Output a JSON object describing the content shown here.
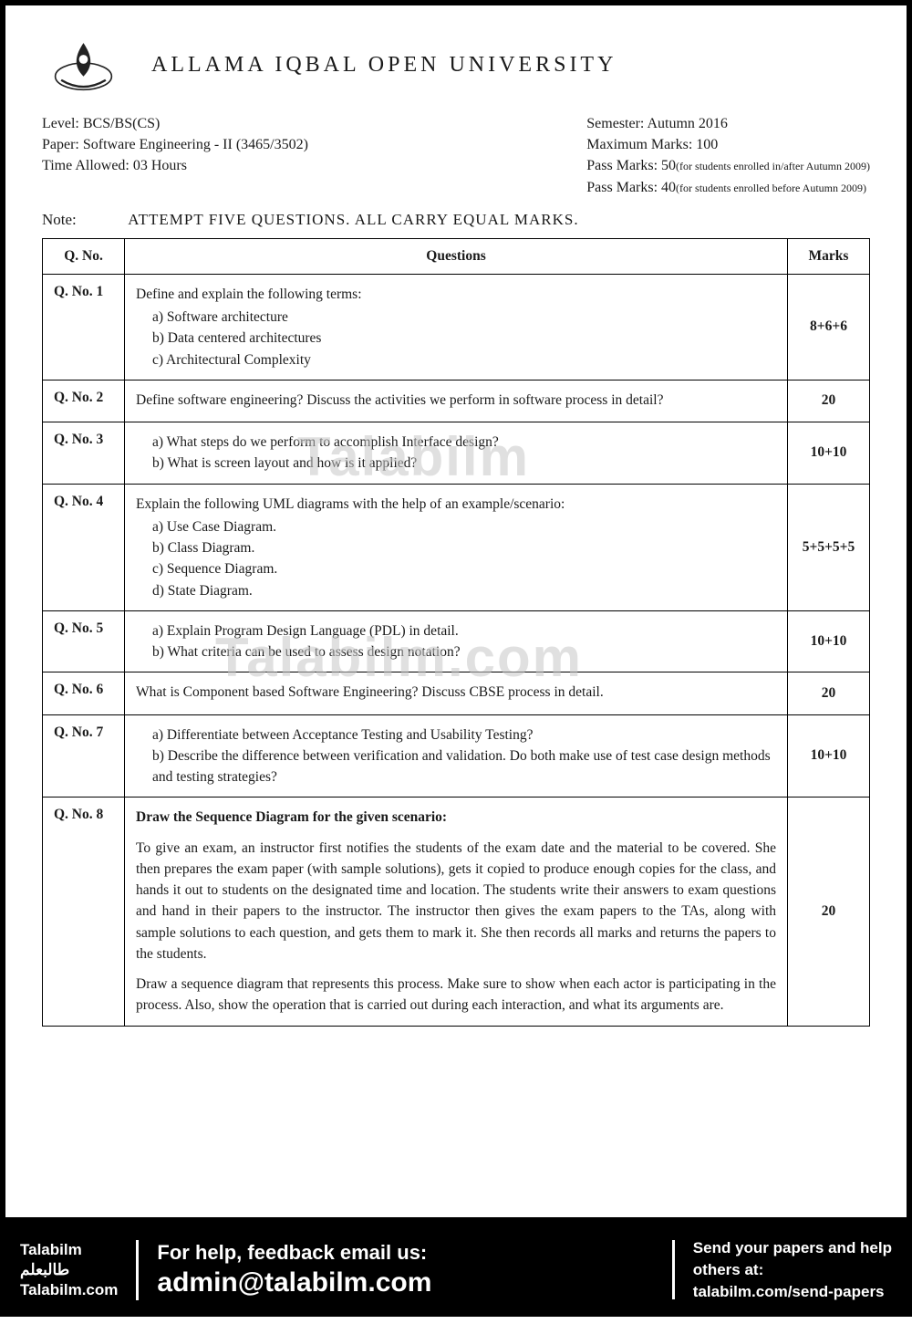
{
  "university": "ALLAMA IQBAL OPEN UNIVERSITY",
  "meta": {
    "level": "Level: BCS/BS(CS)",
    "paper": "Paper: Software Engineering - II  (3465/3502)",
    "time": "Time Allowed: 03 Hours",
    "semester": "Semester: Autumn 2016",
    "maxmarks": "Maximum Marks: 100",
    "pass1": "Pass Marks: 50",
    "pass1_sm": "(for students enrolled in/after Autumn 2009)",
    "pass2": "Pass Marks: 40",
    "pass2_sm": "(for students enrolled before Autumn 2009)"
  },
  "note_label": "Note:",
  "note_text": "ATTEMPT FIVE QUESTIONS. ALL CARRY EQUAL MARKS.",
  "headers": {
    "qno": "Q. No.",
    "questions": "Questions",
    "marks": "Marks"
  },
  "questions": [
    {
      "no": "Q. No. 1",
      "lead": "Define and explain the following terms:",
      "items": [
        "a)  Software architecture",
        "b)  Data centered architectures",
        "c)  Architectural Complexity"
      ],
      "marks": "8+6+6"
    },
    {
      "no": "Q. No. 2",
      "lead": "Define software engineering? Discuss the activities we perform in software process in detail?",
      "items": [],
      "marks": "20"
    },
    {
      "no": "Q. No. 3",
      "lead": "",
      "items": [
        "a)  What steps do we perform to accomplish Interface design?",
        "b)  What is screen layout and how is it applied?"
      ],
      "marks": "10+10"
    },
    {
      "no": "Q. No. 4",
      "lead": "Explain the following UML diagrams with the help of an example/scenario:",
      "items": [
        "a)  Use Case Diagram.",
        "b)  Class Diagram.",
        "c)  Sequence Diagram.",
        "d)  State Diagram."
      ],
      "marks": "5+5+5+5"
    },
    {
      "no": "Q. No. 5",
      "lead": "",
      "items": [
        "a)  Explain Program Design Language (PDL) in detail.",
        "b)  What criteria can be used to assess design notation?"
      ],
      "marks": "10+10"
    },
    {
      "no": "Q. No. 6",
      "lead": "What is Component based Software Engineering? Discuss CBSE process in detail.",
      "items": [],
      "marks": "20"
    },
    {
      "no": "Q. No. 7",
      "lead": "",
      "items": [
        "a)  Differentiate between Acceptance Testing and Usability Testing?",
        "b)  Describe the difference between verification and validation. Do both make use of test case design methods and testing strategies?"
      ],
      "marks": "10+10"
    },
    {
      "no": "Q. No. 8",
      "lead": "Draw the Sequence Diagram for the given scenario:",
      "items": [],
      "paras": [
        "To give an exam, an instructor first notifies the students of the exam date and the material to be covered. She then prepares the exam paper (with sample solutions), gets it copied to produce enough copies for the class, and hands it out to students on the designated time and location. The students write their answers to exam questions and hand in their papers to the instructor. The instructor then gives the exam papers to the TAs, along with sample solutions to each question, and gets them to mark it. She then records all marks and returns the papers to the students.",
        "Draw a sequence diagram that represents this process. Make sure to show when each actor is participating in the process. Also, show the operation that is carried out during each interaction, and what its arguments are."
      ],
      "marks": "20"
    }
  ],
  "watermarks": {
    "wm1": "Talabilm",
    "wm2": "Talabilm.com"
  },
  "footer": {
    "brand1": "Talabilm",
    "brand2": "طالبعلم",
    "brand3": "Talabilm.com",
    "help_line1": "For help, feedback email us:",
    "help_email": "admin@talabilm.com",
    "send_line1": "Send your papers and help",
    "send_line2": "others at:",
    "send_url": "talabilm.com/send-papers"
  }
}
